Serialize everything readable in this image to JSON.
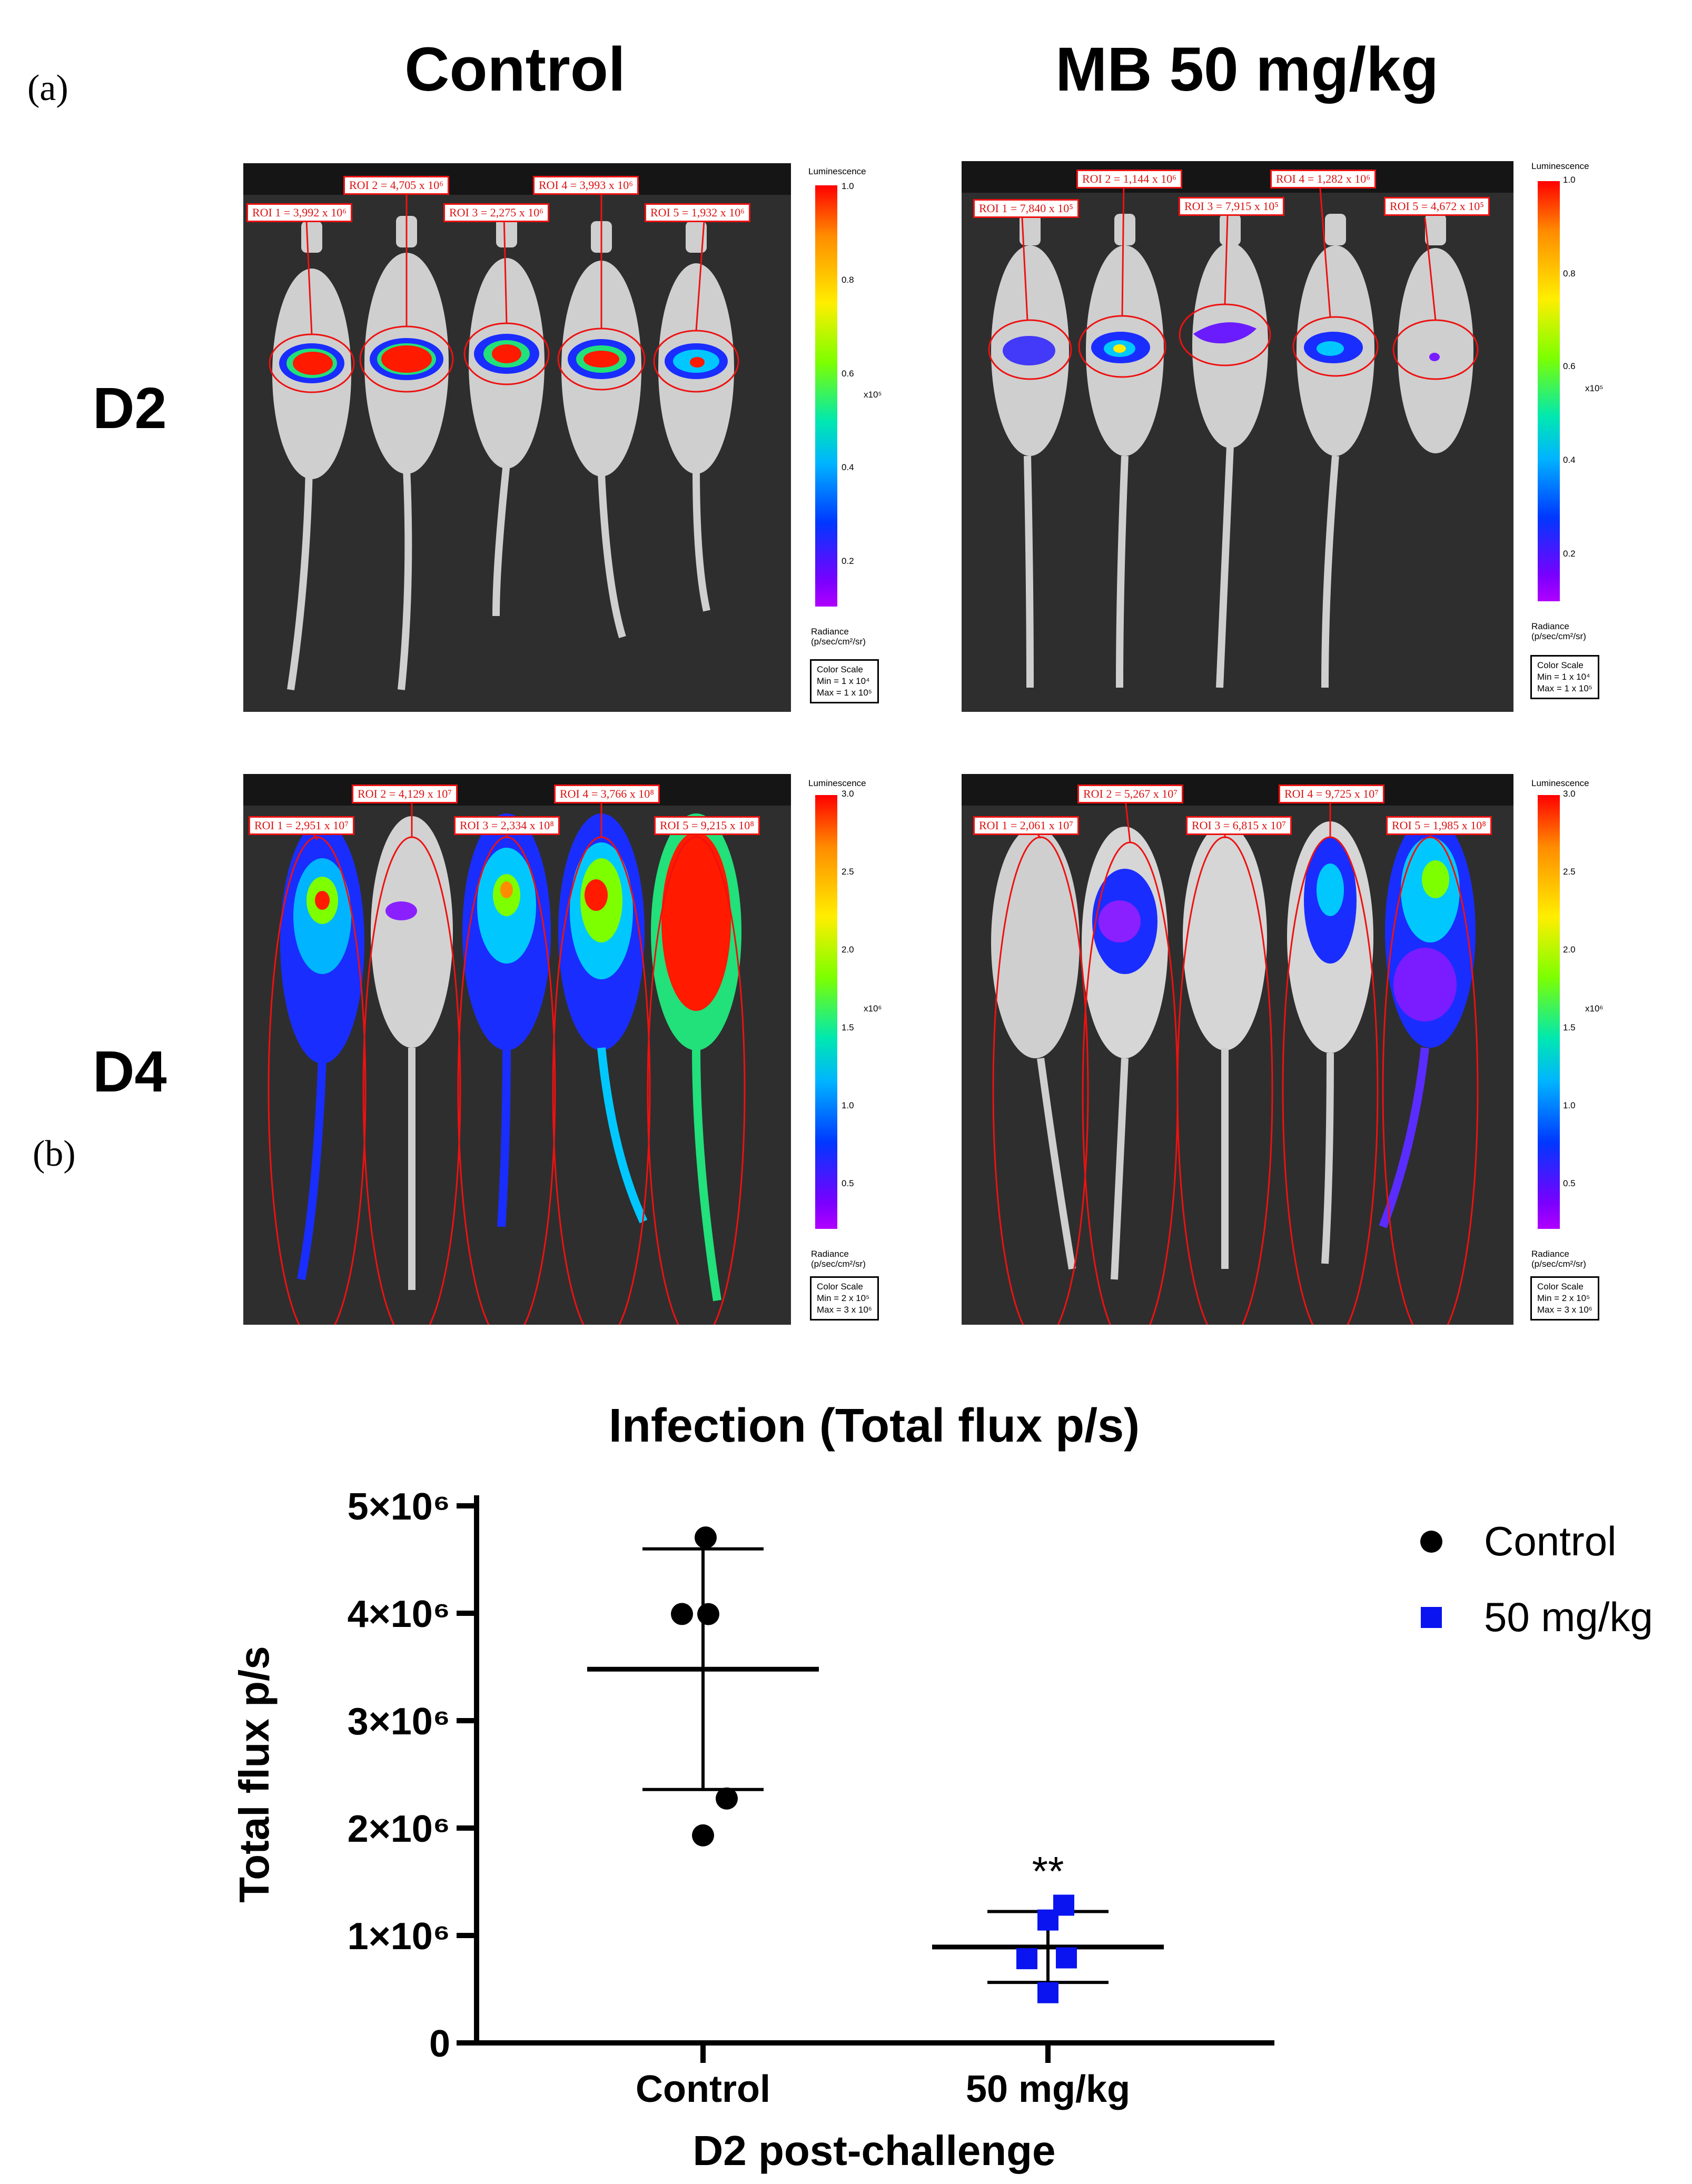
{
  "labels": {
    "a": "(a)",
    "b": "(b)"
  },
  "columns": [
    "Control",
    "MB 50 mg/kg"
  ],
  "rows": [
    "D2",
    "D4"
  ],
  "panels": {
    "d2_control": {
      "rois": [
        "ROI 1 = 3,992 x 10⁶",
        "ROI 2 = 4,705 x 10⁶",
        "ROI 3 = 2,275 x 10⁶",
        "ROI 4 = 3,993 x 10⁶",
        "ROI 5 = 1,932 x 10⁶"
      ],
      "lum_title": "Luminescence",
      "ticks": [
        "1.0",
        "0.8",
        "0.6",
        "0.4",
        "0.2"
      ],
      "unit": "x10⁵",
      "radiance": [
        "Radiance",
        "(p/sec/cm²/sr)"
      ],
      "scale": [
        "Color Scale",
        "Min = 1 x 10⁴",
        "Max = 1 x 10⁵"
      ]
    },
    "d2_mb": {
      "rois": [
        "ROI 1 = 7,840 x 10⁵",
        "ROI 2 = 1,144 x 10⁶",
        "ROI 3 = 7,915 x 10⁵",
        "ROI 4 = 1,282 x 10⁶",
        "ROI 5 = 4,672 x 10⁵"
      ],
      "lum_title": "Luminescence",
      "ticks": [
        "1.0",
        "0.8",
        "0.6",
        "0.4",
        "0.2"
      ],
      "unit": "x10⁵",
      "radiance": [
        "Radiance",
        "(p/sec/cm²/sr)"
      ],
      "scale": [
        "Color Scale",
        "Min = 1 x 10⁴",
        "Max = 1 x 10⁵"
      ]
    },
    "d4_control": {
      "rois": [
        "ROI 1 = 2,951 x 10⁷",
        "ROI 2 = 4,129 x 10⁷",
        "ROI 3 = 2,334 x 10⁸",
        "ROI 4 = 3,766 x 10⁸",
        "ROI 5 = 9,215 x 10⁸"
      ],
      "lum_title": "Luminescence",
      "ticks": [
        "3.0",
        "2.5",
        "2.0",
        "1.5",
        "1.0",
        "0.5"
      ],
      "unit": "x10⁶",
      "radiance": [
        "Radiance",
        "(p/sec/cm²/sr)"
      ],
      "scale": [
        "Color Scale",
        "Min = 2 x 10⁵",
        "Max = 3 x 10⁶"
      ]
    },
    "d4_mb": {
      "rois": [
        "ROI 1 = 2,061 x 10⁷",
        "ROI 2 = 5,267 x 10⁷",
        "ROI 3 = 6,815 x 10⁷",
        "ROI 4 = 9,725 x 10⁷",
        "ROI 5 = 1,985 x 10⁸"
      ],
      "lum_title": "Luminescence",
      "ticks": [
        "3.0",
        "2.5",
        "2.0",
        "1.5",
        "1.0",
        "0.5"
      ],
      "unit": "x10⁶",
      "radiance": [
        "Radiance",
        "(p/sec/cm²/sr)"
      ],
      "scale": [
        "Color Scale",
        "Min = 2 x 10⁵",
        "Max = 3 x 10⁶"
      ]
    }
  },
  "chart_data": {
    "type": "scatter",
    "title": "Infection (Total flux p/s)",
    "xlabel": "D2 post-challenge",
    "ylabel": "Total flux p/s",
    "categories": [
      "Control",
      "50 mg/kg"
    ],
    "yticks": [
      "0",
      "1×10⁶",
      "2×10⁶",
      "3×10⁶",
      "4×10⁶",
      "5×10⁶"
    ],
    "ylim": [
      0,
      5000000
    ],
    "series": [
      {
        "name": "Control",
        "color": "#000000",
        "marker": "circle",
        "values": [
          3992000,
          4705000,
          2275000,
          3993000,
          1932000
        ],
        "mean": 3479000,
        "sd": 1120000
      },
      {
        "name": "50 mg/kg",
        "color": "#0a14f0",
        "marker": "square",
        "values": [
          784000,
          1144000,
          791500,
          1282000,
          467200
        ],
        "mean": 893000,
        "sd": 330000
      }
    ],
    "annotation": "**",
    "legend_position": "top-right"
  }
}
